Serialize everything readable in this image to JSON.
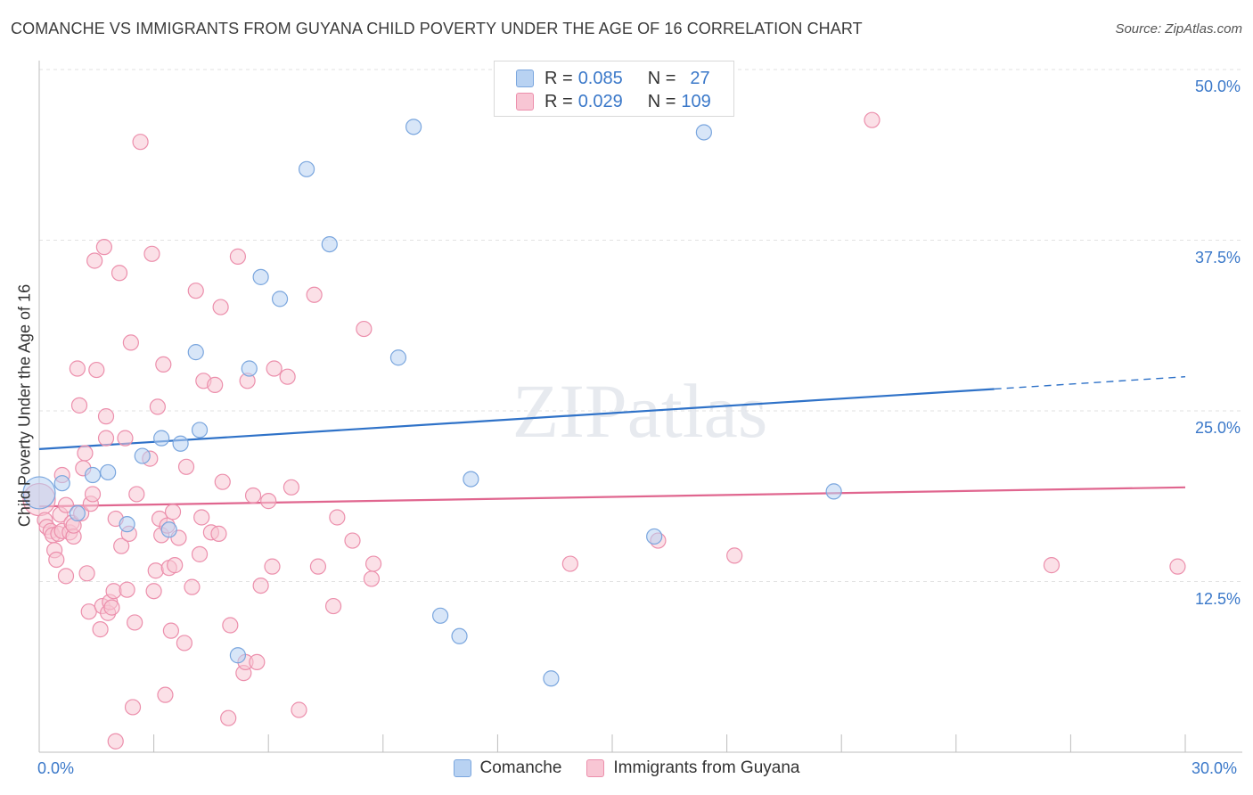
{
  "title": "COMANCHE VS IMMIGRANTS FROM GUYANA CHILD POVERTY UNDER THE AGE OF 16 CORRELATION CHART",
  "source": "Source: ZipAtlas.com",
  "watermark": "ZIPatlas",
  "legend": {
    "rows": [
      {
        "r_label": "R =",
        "r_value": "0.085",
        "n_label": "N =",
        "n_value": "27"
      },
      {
        "r_label": "R =",
        "r_value": "0.029",
        "n_label": "N =",
        "n_value": "109"
      }
    ]
  },
  "colors": {
    "comanche_fill": "#b8d2f2",
    "comanche_stroke": "#7aa6de",
    "comanche_line": "#2f72c8",
    "guyana_fill": "#f8c6d4",
    "guyana_stroke": "#ec8fac",
    "guyana_line": "#e0668f",
    "tick_text": "#3a78c9",
    "grid": "#e2e2e2"
  },
  "chart_data": {
    "type": "scatter",
    "title": "COMANCHE VS IMMIGRANTS FROM GUYANA CHILD POVERTY UNDER THE AGE OF 16 CORRELATION CHART",
    "xlabel": "",
    "ylabel": "Child Poverty Under the Age of 16",
    "xlim": [
      0,
      30
    ],
    "ylim": [
      0,
      50
    ],
    "x_tick_labels": [
      "0.0%",
      "30.0%"
    ],
    "y_ticks": [
      12.5,
      25.0,
      37.5,
      50.0
    ],
    "y_tick_labels": [
      "12.5%",
      "25.0%",
      "37.5%",
      "50.0%"
    ],
    "series": [
      {
        "name": "Comanche",
        "color": "#b8d2f2",
        "trend": {
          "x": [
            0,
            25
          ],
          "y": [
            22.2,
            26.6
          ],
          "dashed_to": [
            30,
            27.5
          ]
        },
        "points": [
          {
            "x": 0.0,
            "y": 19.0,
            "big": true
          },
          {
            "x": 0.6,
            "y": 19.7
          },
          {
            "x": 1.0,
            "y": 17.5
          },
          {
            "x": 1.4,
            "y": 20.3
          },
          {
            "x": 1.8,
            "y": 20.5
          },
          {
            "x": 2.3,
            "y": 16.7
          },
          {
            "x": 2.7,
            "y": 21.7
          },
          {
            "x": 3.2,
            "y": 23.0
          },
          {
            "x": 3.4,
            "y": 16.3
          },
          {
            "x": 3.7,
            "y": 22.6
          },
          {
            "x": 4.1,
            "y": 29.3
          },
          {
            "x": 4.2,
            "y": 23.6
          },
          {
            "x": 5.2,
            "y": 7.1
          },
          {
            "x": 5.5,
            "y": 28.1
          },
          {
            "x": 5.8,
            "y": 34.8
          },
          {
            "x": 6.3,
            "y": 33.2
          },
          {
            "x": 7.0,
            "y": 42.7
          },
          {
            "x": 7.6,
            "y": 37.2
          },
          {
            "x": 9.4,
            "y": 28.9
          },
          {
            "x": 9.8,
            "y": 45.8
          },
          {
            "x": 10.5,
            "y": 10.0
          },
          {
            "x": 11.0,
            "y": 8.5
          },
          {
            "x": 11.3,
            "y": 20.0
          },
          {
            "x": 13.4,
            "y": 5.4
          },
          {
            "x": 16.1,
            "y": 15.8
          },
          {
            "x": 17.4,
            "y": 45.4
          },
          {
            "x": 20.8,
            "y": 19.1
          }
        ]
      },
      {
        "name": "Immigrants from Guyana",
        "color": "#f8c6d4",
        "trend": {
          "x": [
            0,
            30
          ],
          "y": [
            18.0,
            19.4
          ]
        },
        "points": [
          {
            "x": 0.0,
            "y": 18.5,
            "big": true
          },
          {
            "x": 0.15,
            "y": 17.0
          },
          {
            "x": 0.2,
            "y": 16.5
          },
          {
            "x": 0.3,
            "y": 16.2
          },
          {
            "x": 0.35,
            "y": 15.9
          },
          {
            "x": 0.4,
            "y": 14.8
          },
          {
            "x": 0.45,
            "y": 14.1
          },
          {
            "x": 0.5,
            "y": 16.0
          },
          {
            "x": 0.55,
            "y": 17.4
          },
          {
            "x": 0.6,
            "y": 16.2
          },
          {
            "x": 0.6,
            "y": 20.3
          },
          {
            "x": 0.7,
            "y": 18.1
          },
          {
            "x": 0.7,
            "y": 12.9
          },
          {
            "x": 0.8,
            "y": 16.1
          },
          {
            "x": 0.85,
            "y": 16.8
          },
          {
            "x": 0.9,
            "y": 15.8
          },
          {
            "x": 0.9,
            "y": 16.6
          },
          {
            "x": 1.0,
            "y": 28.1
          },
          {
            "x": 1.05,
            "y": 25.4
          },
          {
            "x": 1.1,
            "y": 17.5
          },
          {
            "x": 1.15,
            "y": 20.8
          },
          {
            "x": 1.2,
            "y": 21.9
          },
          {
            "x": 1.25,
            "y": 13.1
          },
          {
            "x": 1.3,
            "y": 10.3
          },
          {
            "x": 1.35,
            "y": 18.2
          },
          {
            "x": 1.4,
            "y": 18.9
          },
          {
            "x": 1.45,
            "y": 36.0
          },
          {
            "x": 1.5,
            "y": 28.0
          },
          {
            "x": 1.6,
            "y": 9.0
          },
          {
            "x": 1.65,
            "y": 10.7
          },
          {
            "x": 1.7,
            "y": 37.0
          },
          {
            "x": 1.75,
            "y": 24.6
          },
          {
            "x": 1.75,
            "y": 23.0
          },
          {
            "x": 1.8,
            "y": 10.2
          },
          {
            "x": 1.85,
            "y": 11.0
          },
          {
            "x": 1.9,
            "y": 10.6
          },
          {
            "x": 1.95,
            "y": 11.8
          },
          {
            "x": 2.0,
            "y": 0.8
          },
          {
            "x": 2.0,
            "y": 17.1
          },
          {
            "x": 2.1,
            "y": 35.1
          },
          {
            "x": 2.15,
            "y": 15.1
          },
          {
            "x": 2.25,
            "y": 23.0
          },
          {
            "x": 2.3,
            "y": 11.9
          },
          {
            "x": 2.35,
            "y": 16.0
          },
          {
            "x": 2.4,
            "y": 30.0
          },
          {
            "x": 2.45,
            "y": 3.3
          },
          {
            "x": 2.5,
            "y": 9.5
          },
          {
            "x": 2.55,
            "y": 18.9
          },
          {
            "x": 2.65,
            "y": 44.7
          },
          {
            "x": 2.9,
            "y": 21.5
          },
          {
            "x": 2.95,
            "y": 36.5
          },
          {
            "x": 3.0,
            "y": 11.8
          },
          {
            "x": 3.05,
            "y": 13.3
          },
          {
            "x": 3.1,
            "y": 25.3
          },
          {
            "x": 3.15,
            "y": 17.1
          },
          {
            "x": 3.2,
            "y": 15.9
          },
          {
            "x": 3.25,
            "y": 28.4
          },
          {
            "x": 3.3,
            "y": 4.2
          },
          {
            "x": 3.35,
            "y": 16.6
          },
          {
            "x": 3.4,
            "y": 13.5
          },
          {
            "x": 3.45,
            "y": 8.9
          },
          {
            "x": 3.5,
            "y": 17.6
          },
          {
            "x": 3.55,
            "y": 13.7
          },
          {
            "x": 3.65,
            "y": 15.7
          },
          {
            "x": 3.8,
            "y": 8.0
          },
          {
            "x": 3.85,
            "y": 20.9
          },
          {
            "x": 4.0,
            "y": 12.1
          },
          {
            "x": 4.1,
            "y": 33.8
          },
          {
            "x": 4.2,
            "y": 14.5
          },
          {
            "x": 4.25,
            "y": 17.2
          },
          {
            "x": 4.3,
            "y": 27.2
          },
          {
            "x": 4.5,
            "y": 16.1
          },
          {
            "x": 4.6,
            "y": 26.9
          },
          {
            "x": 4.7,
            "y": 16.0
          },
          {
            "x": 4.75,
            "y": 32.6
          },
          {
            "x": 4.8,
            "y": 19.8
          },
          {
            "x": 4.95,
            "y": 2.5
          },
          {
            "x": 5.0,
            "y": 9.3
          },
          {
            "x": 5.2,
            "y": 36.3
          },
          {
            "x": 5.35,
            "y": 5.8
          },
          {
            "x": 5.4,
            "y": 6.6
          },
          {
            "x": 5.45,
            "y": 27.2
          },
          {
            "x": 5.6,
            "y": 18.8
          },
          {
            "x": 5.7,
            "y": 6.6
          },
          {
            "x": 5.8,
            "y": 12.2
          },
          {
            "x": 6.0,
            "y": 18.4
          },
          {
            "x": 6.1,
            "y": 13.6
          },
          {
            "x": 6.15,
            "y": 28.1
          },
          {
            "x": 6.5,
            "y": 27.5
          },
          {
            "x": 6.6,
            "y": 19.4
          },
          {
            "x": 6.8,
            "y": 3.1
          },
          {
            "x": 7.2,
            "y": 33.5
          },
          {
            "x": 7.3,
            "y": 13.6
          },
          {
            "x": 7.7,
            "y": 10.7
          },
          {
            "x": 7.8,
            "y": 17.2
          },
          {
            "x": 8.2,
            "y": 15.5
          },
          {
            "x": 8.5,
            "y": 31.0
          },
          {
            "x": 8.7,
            "y": 12.7
          },
          {
            "x": 8.75,
            "y": 13.8
          },
          {
            "x": 13.9,
            "y": 13.8
          },
          {
            "x": 16.2,
            "y": 15.5
          },
          {
            "x": 18.2,
            "y": 14.4
          },
          {
            "x": 21.8,
            "y": 46.3
          },
          {
            "x": 26.5,
            "y": 13.7
          },
          {
            "x": 29.8,
            "y": 13.6
          }
        ]
      }
    ]
  }
}
